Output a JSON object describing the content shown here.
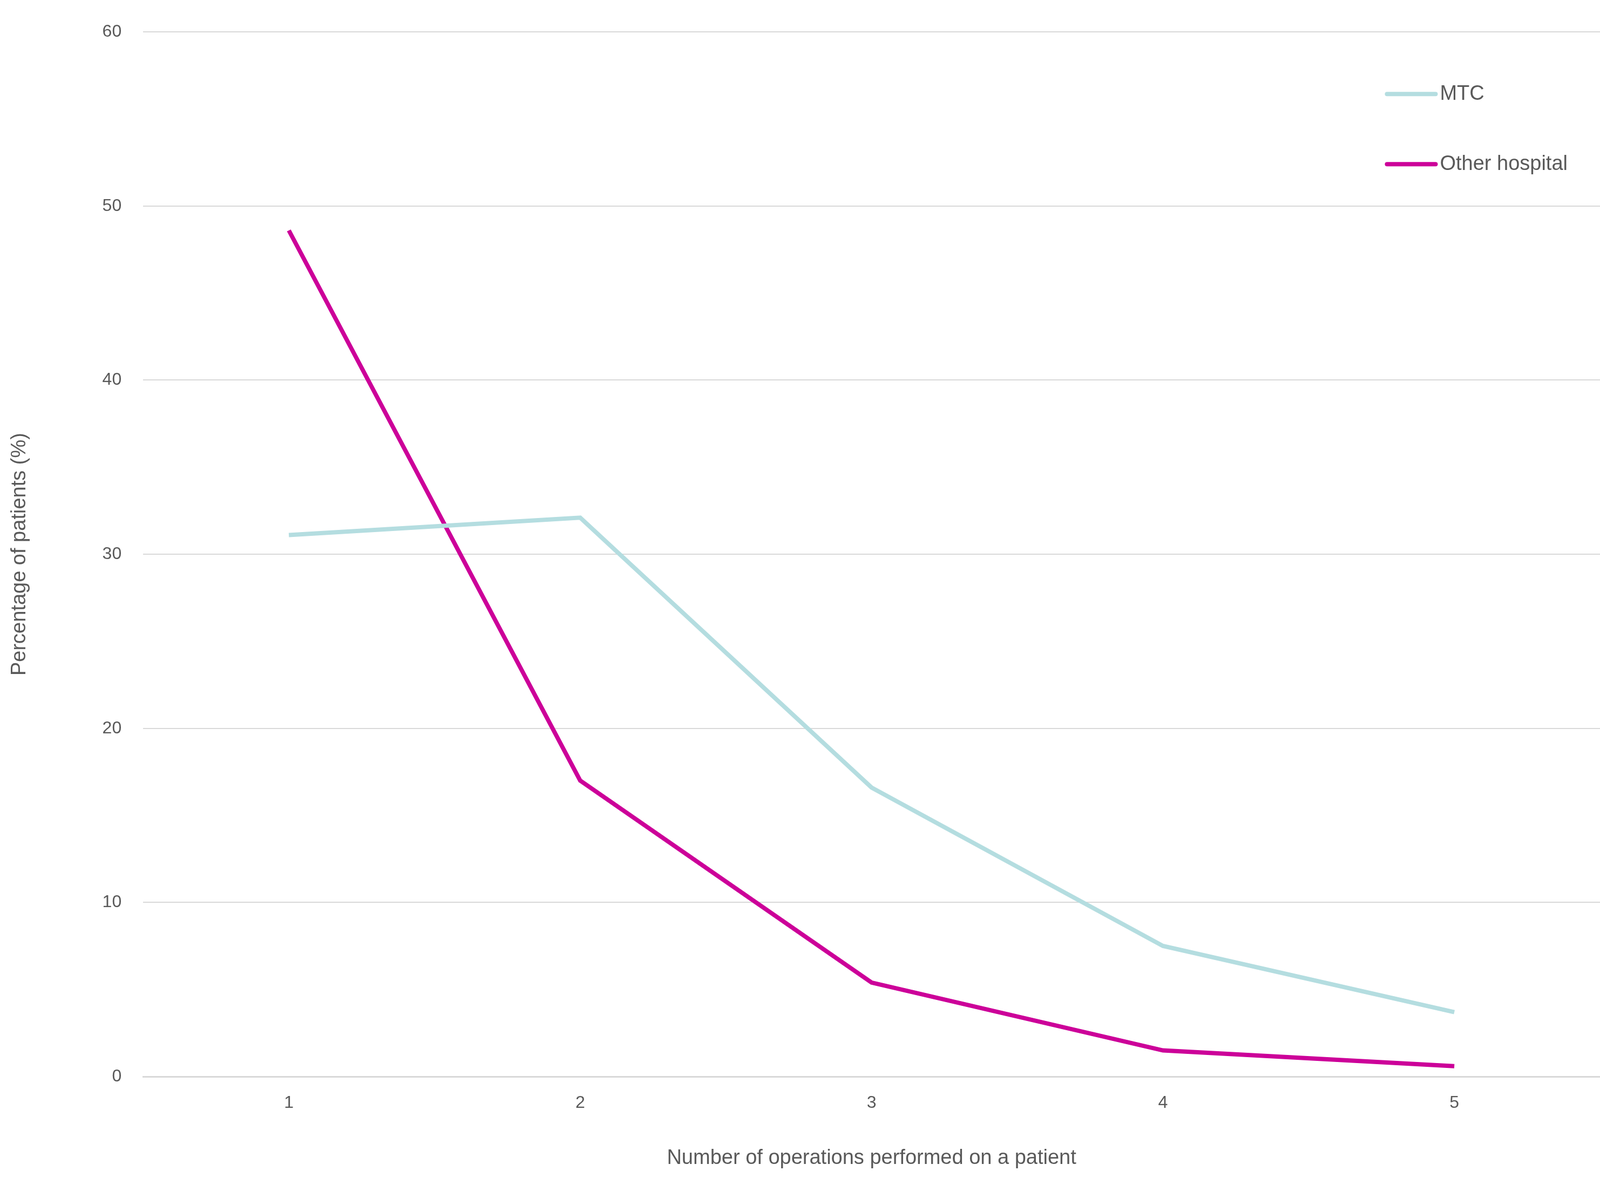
{
  "chart_data": {
    "type": "line",
    "x_label": "Number of operations performed on a patient",
    "y_label": "Percentage of patients (%)",
    "categories": [
      "1",
      "2",
      "3",
      "4",
      "5"
    ],
    "series": [
      {
        "name": "MTC",
        "color": "#b4dde0",
        "values": [
          31.1,
          32.1,
          16.6,
          7.5,
          3.7
        ]
      },
      {
        "name": "Other hospital",
        "color": "#cc0099",
        "values": [
          48.6,
          17.0,
          5.4,
          1.5,
          0.6
        ]
      }
    ],
    "ylim": [
      0,
      60
    ],
    "yticks": [
      0,
      10,
      20,
      30,
      40,
      50,
      60
    ],
    "grid": true,
    "legend": "top-right"
  }
}
